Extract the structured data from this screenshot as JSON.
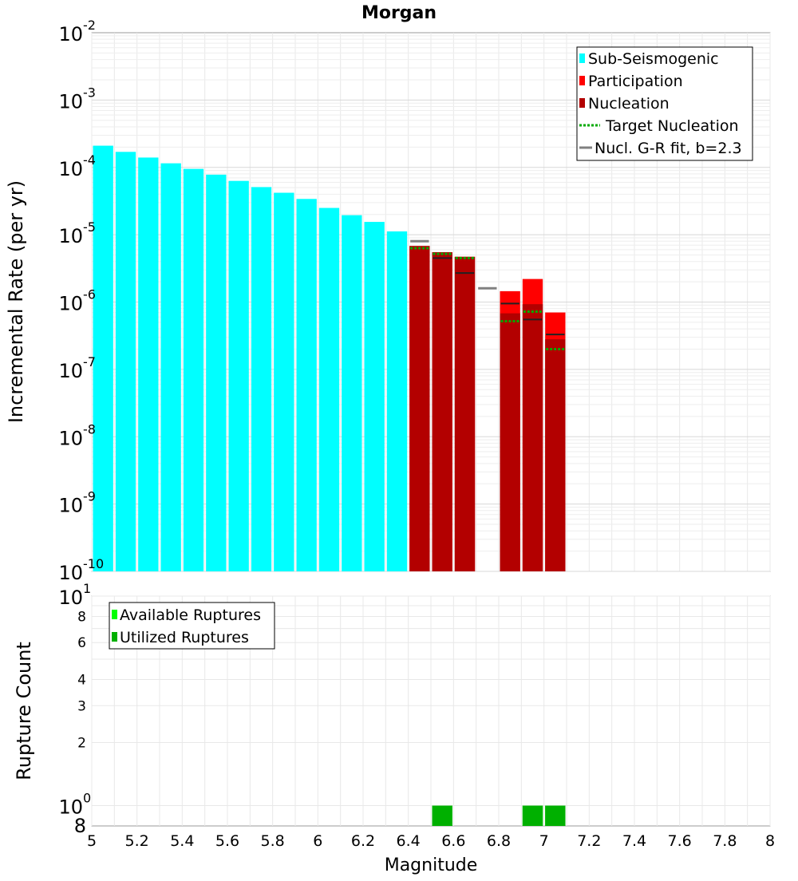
{
  "chart_data": [
    {
      "type": "bar",
      "title": "Morgan",
      "ylabel": "Incremental Rate (per yr)",
      "xlabel": "",
      "yscale": "log",
      "ylim_exp": [
        -10,
        -2
      ],
      "xlim": [
        5,
        8
      ],
      "y_tick_labels": [
        {
          "base": "10",
          "exp": "-10"
        },
        {
          "base": "10",
          "exp": "-9"
        },
        {
          "base": "10",
          "exp": "-8"
        },
        {
          "base": "10",
          "exp": "-7"
        },
        {
          "base": "10",
          "exp": "-6"
        },
        {
          "base": "10",
          "exp": "-5"
        },
        {
          "base": "10",
          "exp": "-4"
        },
        {
          "base": "10",
          "exp": "-3"
        },
        {
          "base": "10",
          "exp": "-2"
        }
      ],
      "legend": {
        "position": "top-right",
        "entries": [
          {
            "label": "Sub-Seismogenic",
            "color": "#00ffff",
            "kind": "bar"
          },
          {
            "label": "Participation",
            "color": "#ff0000",
            "kind": "bar"
          },
          {
            "label": "Nucleation",
            "color": "#b30000",
            "kind": "bar"
          },
          {
            "label": "Target Nucleation",
            "color": "#00aa00",
            "kind": "dotted"
          },
          {
            "label": "Nucl. G-R fit, b=2.3",
            "color": "#808080",
            "kind": "line"
          }
        ]
      },
      "series": [
        {
          "name": "Sub-Seismogenic",
          "color": "#00ffff",
          "x": [
            5.05,
            5.15,
            5.25,
            5.35,
            5.45,
            5.55,
            5.65,
            5.75,
            5.85,
            5.95,
            6.05,
            6.15,
            6.25,
            6.35
          ],
          "values": [
            0.00021,
            0.00017,
            0.00014,
            0.000115,
            9.5e-05,
            7.8e-05,
            6.3e-05,
            5.1e-05,
            4.2e-05,
            3.4e-05,
            2.5e-05,
            1.95e-05,
            1.55e-05,
            1.12e-05
          ]
        },
        {
          "name": "Participation",
          "color": "#ff0000",
          "x": [
            6.45,
            6.55,
            6.65,
            6.85,
            6.95,
            7.05
          ],
          "values": [
            6.8e-06,
            5.5e-06,
            4.7e-06,
            1.45e-06,
            2.2e-06,
            7e-07
          ]
        },
        {
          "name": "Nucleation",
          "color": "#b30000",
          "x": [
            6.45,
            6.55,
            6.65,
            6.85,
            6.95,
            7.05
          ],
          "values": [
            6.8e-06,
            5.5e-06,
            4.7e-06,
            6.8e-07,
            9.3e-07,
            2.8e-07
          ]
        },
        {
          "name": "Target Nucleation",
          "color": "#00aa00",
          "x": [
            6.45,
            6.55,
            6.65,
            6.85,
            6.95,
            7.05
          ],
          "values": [
            6.3e-06,
            5.2e-06,
            4.5e-06,
            5.2e-07,
            7.2e-07,
            2e-07
          ]
        },
        {
          "name": "Nucl. G-R fit, b=2.3",
          "color": "#808080",
          "x": [
            6.45,
            6.75
          ],
          "values": [
            8e-06,
            1.6e-06
          ]
        },
        {
          "name": "Nucleation marker",
          "color": "#222222",
          "x": [
            6.55,
            6.65,
            6.85,
            6.95,
            7.05
          ],
          "values": [
            4.5e-06,
            2.7e-06,
            9.5e-07,
            5.5e-07,
            3.3e-07
          ]
        }
      ]
    },
    {
      "type": "bar",
      "title": "",
      "ylabel": "Rupture Count",
      "xlabel": "Magnitude",
      "yscale": "log",
      "ylim": [
        0.8,
        10
      ],
      "xlim": [
        5,
        8
      ],
      "x_tick_labels": [
        "5",
        "5.2",
        "5.4",
        "5.6",
        "5.8",
        "6",
        "6.2",
        "6.4",
        "6.6",
        "6.8",
        "7",
        "7.2",
        "7.4",
        "7.6",
        "7.8",
        "8"
      ],
      "y_minor_ticks": [
        {
          "value": 8,
          "label": "8"
        },
        {
          "value": 6,
          "label": "6"
        },
        {
          "value": 4,
          "label": "4"
        },
        {
          "value": 3,
          "label": "3"
        },
        {
          "value": 2,
          "label": "2"
        }
      ],
      "y_major_ticks": [
        {
          "value": 10,
          "base": "10",
          "exp": "1"
        },
        {
          "value": 1,
          "base": "10",
          "exp": "0"
        }
      ],
      "y_bottom_label": "8",
      "legend": {
        "position": "top-left",
        "entries": [
          {
            "label": "Available Ruptures",
            "color": "#00ff00"
          },
          {
            "label": "Utilized Ruptures",
            "color": "#00b000"
          }
        ]
      },
      "series": [
        {
          "name": "Available Ruptures",
          "color": "#00ff00",
          "x": [
            6.55,
            6.95,
            7.05
          ],
          "values": [
            1,
            1,
            1
          ]
        },
        {
          "name": "Utilized Ruptures",
          "color": "#00b000",
          "x": [
            6.55,
            6.95,
            7.05
          ],
          "values": [
            1,
            1,
            1
          ]
        }
      ]
    }
  ]
}
